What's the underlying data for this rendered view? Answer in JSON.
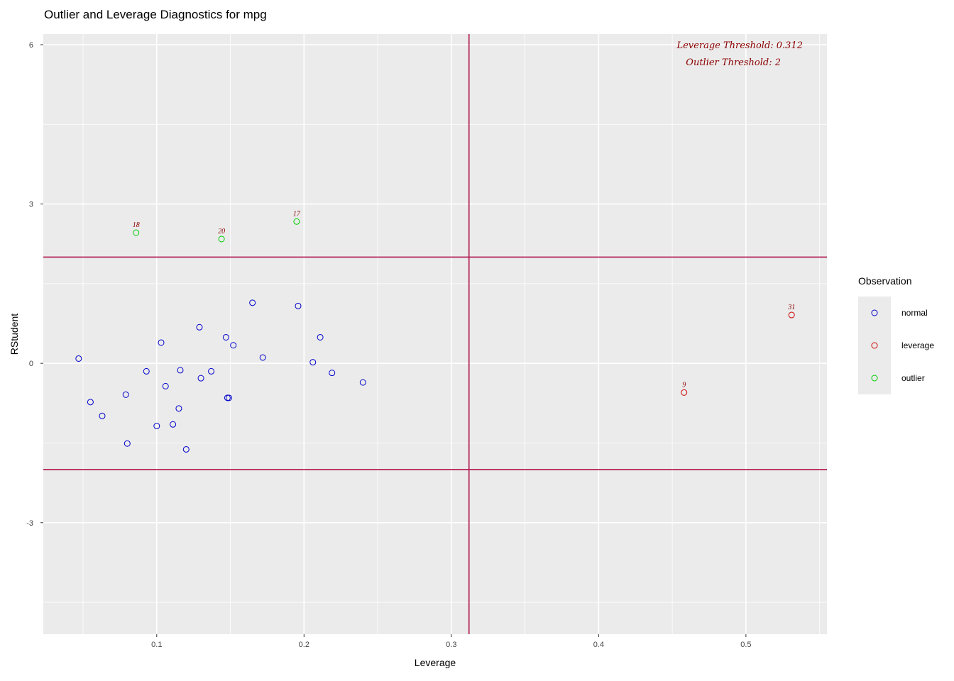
{
  "chart_data": {
    "type": "scatter",
    "title": "Outlier and Leverage Diagnostics for mpg",
    "xlabel": "Leverage",
    "ylabel": "RStudent",
    "xlim": [
      0.023,
      0.555
    ],
    "ylim": [
      -5.1,
      6.2
    ],
    "x_ticks": [
      0.1,
      0.2,
      0.3,
      0.4,
      0.5
    ],
    "y_ticks": [
      -3,
      0,
      3,
      6
    ],
    "grid": true,
    "legend": {
      "title": "Observation",
      "placement": "right",
      "entries": [
        {
          "label": "normal",
          "color": "#0000cc"
        },
        {
          "label": "leverage",
          "color": "#cc0000"
        },
        {
          "label": "outlier",
          "color": "#00cc00"
        }
      ]
    },
    "thresholds": {
      "leverage": 0.312,
      "outlier_upper": 2,
      "outlier_lower": -2,
      "line_color": "#b0164e"
    },
    "annotations": [
      "Leverage Threshold: 0.312",
      "Outlier Threshold: 2"
    ],
    "points": [
      {
        "x": 0.047,
        "y": 0.09,
        "group": "normal"
      },
      {
        "x": 0.055,
        "y": -0.73,
        "group": "normal"
      },
      {
        "x": 0.063,
        "y": -0.99,
        "group": "normal"
      },
      {
        "x": 0.079,
        "y": -0.59,
        "group": "normal"
      },
      {
        "x": 0.08,
        "y": -1.51,
        "group": "normal"
      },
      {
        "x": 0.086,
        "y": 2.46,
        "group": "outlier",
        "label": "18"
      },
      {
        "x": 0.093,
        "y": -0.15,
        "group": "normal"
      },
      {
        "x": 0.1,
        "y": -1.18,
        "group": "normal"
      },
      {
        "x": 0.103,
        "y": 0.39,
        "group": "normal"
      },
      {
        "x": 0.106,
        "y": -0.43,
        "group": "normal"
      },
      {
        "x": 0.111,
        "y": -1.15,
        "group": "normal"
      },
      {
        "x": 0.115,
        "y": -0.85,
        "group": "normal"
      },
      {
        "x": 0.116,
        "y": -0.13,
        "group": "normal"
      },
      {
        "x": 0.12,
        "y": -1.62,
        "group": "normal"
      },
      {
        "x": 0.129,
        "y": 0.68,
        "group": "normal"
      },
      {
        "x": 0.13,
        "y": -0.28,
        "group": "normal"
      },
      {
        "x": 0.137,
        "y": -0.15,
        "group": "normal"
      },
      {
        "x": 0.144,
        "y": 2.34,
        "group": "outlier",
        "label": "20"
      },
      {
        "x": 0.147,
        "y": 0.49,
        "group": "normal"
      },
      {
        "x": 0.148,
        "y": -0.65,
        "group": "normal"
      },
      {
        "x": 0.149,
        "y": -0.65,
        "group": "normal"
      },
      {
        "x": 0.152,
        "y": 0.34,
        "group": "normal"
      },
      {
        "x": 0.165,
        "y": 1.14,
        "group": "normal"
      },
      {
        "x": 0.172,
        "y": 0.11,
        "group": "normal"
      },
      {
        "x": 0.195,
        "y": 2.67,
        "group": "outlier",
        "label": "17"
      },
      {
        "x": 0.196,
        "y": 1.08,
        "group": "normal"
      },
      {
        "x": 0.206,
        "y": 0.02,
        "group": "normal"
      },
      {
        "x": 0.211,
        "y": 0.49,
        "group": "normal"
      },
      {
        "x": 0.219,
        "y": -0.18,
        "group": "normal"
      },
      {
        "x": 0.24,
        "y": -0.36,
        "group": "normal"
      },
      {
        "x": 0.458,
        "y": -0.55,
        "group": "leverage",
        "label": "9"
      },
      {
        "x": 0.531,
        "y": 0.91,
        "group": "leverage",
        "label": "31"
      }
    ]
  }
}
